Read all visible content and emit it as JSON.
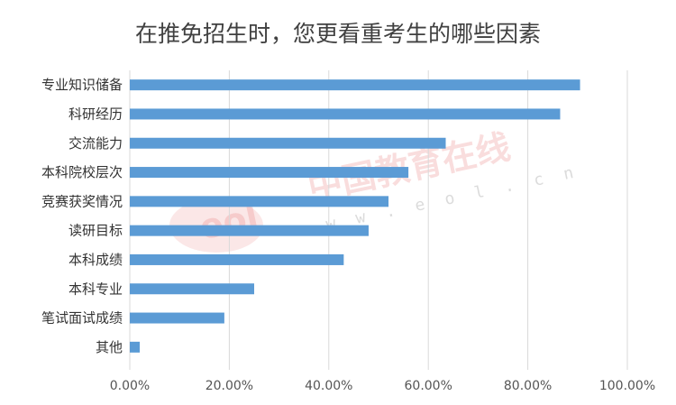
{
  "chart_data": {
    "type": "bar",
    "orientation": "horizontal",
    "title": "在推免招生时，您更看重考生的哪些因素",
    "categories": [
      "专业知识储备",
      "科研经历",
      "交流能力",
      "本科院校层次",
      "竞赛获奖情况",
      "读研目标",
      "本科成绩",
      "本科专业",
      "笔试面试成绩",
      "其他"
    ],
    "values": [
      90.5,
      86.5,
      63.5,
      56,
      52,
      48,
      43,
      25,
      19,
      2
    ],
    "xlim": [
      0,
      100
    ],
    "xticks": [
      "0.00%",
      "20.00%",
      "40.00%",
      "60.00%",
      "80.00%",
      "100.00%"
    ],
    "grid": true,
    "bar_color": "#5b9bd5",
    "grid_color": "#d9d9d9"
  },
  "watermark": {
    "text": "中国教育在线",
    "url": "w w w . e o l . c n",
    "logo": "eol"
  }
}
